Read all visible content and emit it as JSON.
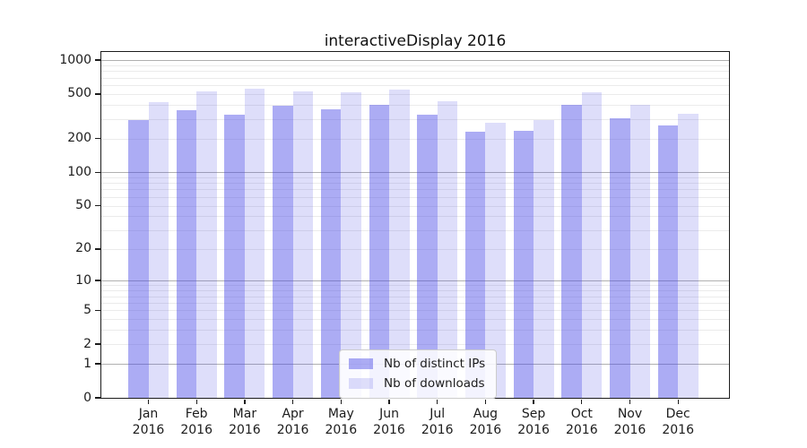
{
  "chart_data": {
    "type": "bar",
    "title": "interactiveDisplay 2016",
    "categories": [
      "Jan\n2016",
      "Feb\n2016",
      "Mar\n2016",
      "Apr\n2016",
      "May\n2016",
      "Jun\n2016",
      "Jul\n2016",
      "Aug\n2016",
      "Sep\n2016",
      "Oct\n2016",
      "Nov\n2016",
      "Dec\n2016"
    ],
    "series": [
      {
        "name": "Nb of distinct IPs",
        "color": "#4646e673",
        "values": [
          295,
          360,
          325,
          390,
          365,
          400,
          325,
          230,
          235,
          400,
          305,
          260
        ]
      },
      {
        "name": "Nb of downloads",
        "color": "#4646e62e",
        "values": [
          420,
          530,
          560,
          530,
          515,
          545,
          430,
          275,
          295,
          515,
          400,
          335
        ]
      }
    ],
    "xlabel": "",
    "ylabel": "",
    "yscale": "symlog",
    "yticks": [
      0,
      1,
      2,
      5,
      10,
      20,
      50,
      100,
      200,
      500,
      1000
    ],
    "ylim": [
      0,
      1182
    ],
    "grid": "on",
    "legend_position": "lower center",
    "grid_major_color": "#b0b0b0",
    "grid_minor_color": "#ebebeb",
    "axis_color": "#1c1c1c"
  }
}
